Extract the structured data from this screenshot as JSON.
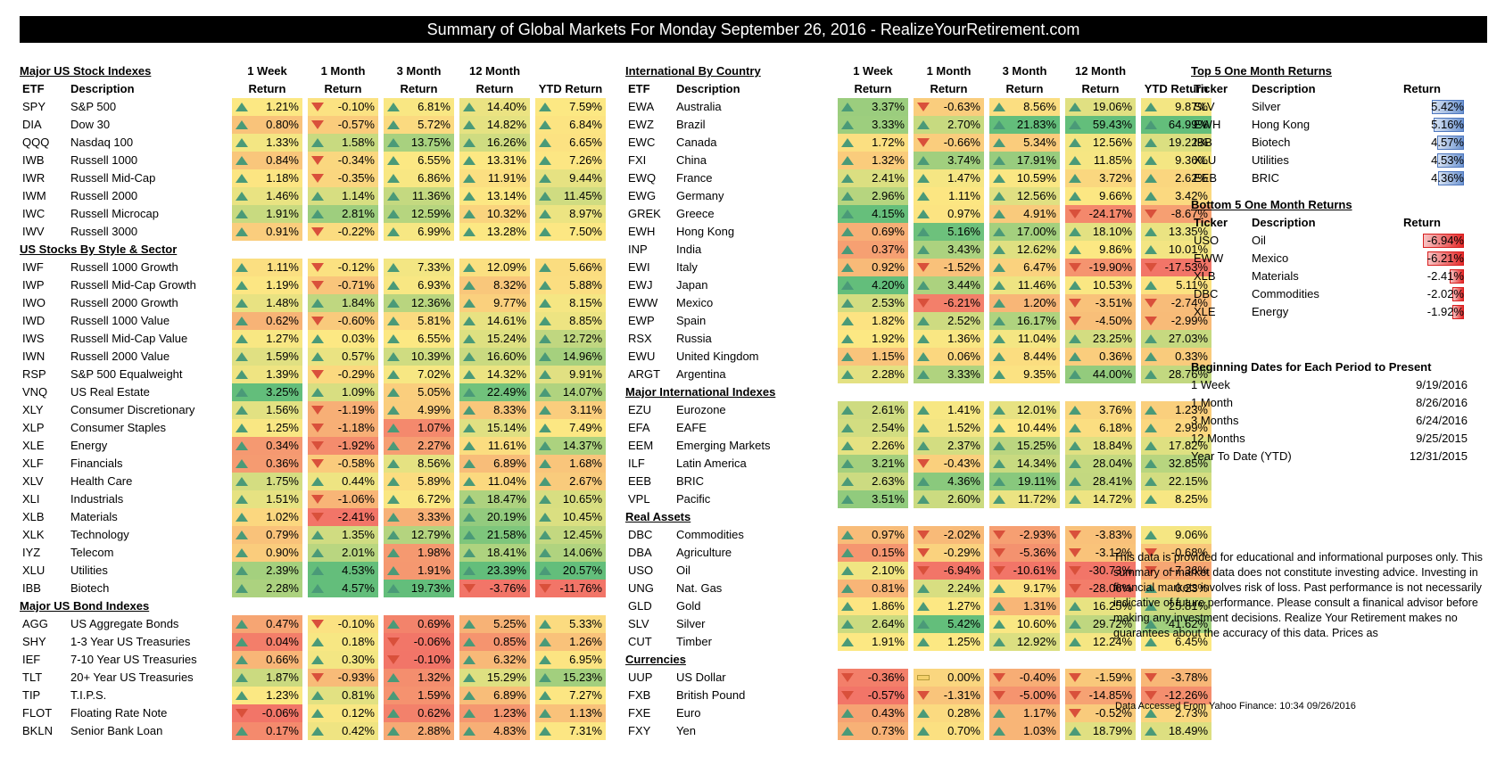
{
  "title": "Summary of Global Markets For Monday September 26, 2016 - RealizeYourRetirement.com",
  "left": {
    "header": {
      "etf": "ETF",
      "desc": "Description",
      "w1a": "1 Week",
      "w1b": "Return",
      "m1a": "1 Month",
      "m1b": "Return",
      "m3a": "3 Month",
      "m3b": "Return",
      "m12a": "12 Month",
      "m12b": "Return",
      "ytd": "YTD Return"
    },
    "sections": [
      {
        "title": "Major US Stock Indexes",
        "rows": [
          [
            "SPY",
            "S&P 500",
            "1.21%",
            "-0.10%",
            "6.81%",
            "14.40%",
            "7.59%"
          ],
          [
            "DIA",
            "Dow 30",
            "0.80%",
            "-0.57%",
            "5.72%",
            "14.82%",
            "6.84%"
          ],
          [
            "QQQ",
            "Nasdaq 100",
            "1.33%",
            "1.58%",
            "13.75%",
            "16.26%",
            "6.65%"
          ],
          [
            "IWB",
            "Russell 1000",
            "0.84%",
            "-0.34%",
            "6.55%",
            "13.31%",
            "7.26%"
          ],
          [
            "IWR",
            "Russell Mid-Cap",
            "1.18%",
            "-0.35%",
            "6.86%",
            "11.91%",
            "9.44%"
          ],
          [
            "IWM",
            "Russell 2000",
            "1.46%",
            "1.14%",
            "11.36%",
            "13.14%",
            "11.45%"
          ],
          [
            "IWC",
            "Russell Microcap",
            "1.91%",
            "2.81%",
            "12.59%",
            "10.32%",
            "8.97%"
          ],
          [
            "IWV",
            "Russell 3000",
            "0.91%",
            "-0.22%",
            "6.99%",
            "13.28%",
            "7.50%"
          ]
        ]
      },
      {
        "title": "US Stocks By Style & Sector",
        "rows": [
          [
            "IWF",
            "Russell 1000 Growth",
            "1.11%",
            "-0.12%",
            "7.33%",
            "12.09%",
            "5.66%"
          ],
          [
            "IWP",
            "Russell Mid-Cap Growth",
            "1.19%",
            "-0.71%",
            "6.93%",
            "8.32%",
            "5.88%"
          ],
          [
            "IWO",
            "Russell 2000 Growth",
            "1.48%",
            "1.84%",
            "12.36%",
            "9.77%",
            "8.15%"
          ],
          [
            "IWD",
            "Russell 1000 Value",
            "0.62%",
            "-0.60%",
            "5.81%",
            "14.61%",
            "8.85%"
          ],
          [
            "IWS",
            "Russell Mid-Cap Value",
            "1.27%",
            "0.03%",
            "6.55%",
            "15.24%",
            "12.72%"
          ],
          [
            "IWN",
            "Russell 2000 Value",
            "1.59%",
            "0.57%",
            "10.39%",
            "16.60%",
            "14.96%"
          ],
          [
            "RSP",
            "S&P 500 Equalweight",
            "1.39%",
            "-0.29%",
            "7.02%",
            "14.32%",
            "9.91%"
          ],
          [
            "VNQ",
            "US Real Estate",
            "3.25%",
            "1.09%",
            "5.05%",
            "22.49%",
            "14.07%"
          ],
          [
            "XLY",
            "Consumer Discretionary",
            "1.56%",
            "-1.19%",
            "4.99%",
            "8.33%",
            "3.11%"
          ],
          [
            "XLP",
            "Consumer Staples",
            "1.25%",
            "-1.18%",
            "1.07%",
            "15.14%",
            "7.49%"
          ],
          [
            "XLE",
            "Energy",
            "0.34%",
            "-1.92%",
            "2.27%",
            "11.61%",
            "14.37%"
          ],
          [
            "XLF",
            "Financials",
            "0.36%",
            "-0.58%",
            "8.56%",
            "6.89%",
            "1.68%"
          ],
          [
            "XLV",
            "Health Care",
            "1.75%",
            "0.44%",
            "5.89%",
            "11.04%",
            "2.67%"
          ],
          [
            "XLI",
            "Industrials",
            "1.51%",
            "-1.06%",
            "6.72%",
            "18.47%",
            "10.65%"
          ],
          [
            "XLB",
            "Materials",
            "1.02%",
            "-2.41%",
            "3.33%",
            "20.19%",
            "10.45%"
          ],
          [
            "XLK",
            "Technology",
            "0.79%",
            "1.35%",
            "12.79%",
            "21.58%",
            "12.45%"
          ],
          [
            "IYZ",
            "Telecom",
            "0.90%",
            "2.01%",
            "1.98%",
            "18.41%",
            "14.06%"
          ],
          [
            "XLU",
            "Utilities",
            "2.39%",
            "4.53%",
            "1.91%",
            "23.39%",
            "20.57%"
          ],
          [
            "IBB",
            "Biotech",
            "2.28%",
            "4.57%",
            "19.73%",
            "-3.76%",
            "-11.76%"
          ]
        ]
      },
      {
        "title": "Major US Bond Indexes",
        "rows": [
          [
            "AGG",
            "US Aggregate Bonds",
            "0.47%",
            "-0.10%",
            "0.69%",
            "5.25%",
            "5.33%"
          ],
          [
            "SHY",
            "1-3 Year US Treasuries",
            "0.04%",
            "0.18%",
            "-0.06%",
            "0.85%",
            "1.26%"
          ],
          [
            "IEF",
            "7-10 Year US Treasuries",
            "0.66%",
            "0.30%",
            "-0.10%",
            "6.32%",
            "6.95%"
          ],
          [
            "TLT",
            "20+ Year US Treasuries",
            "1.87%",
            "-0.93%",
            "1.32%",
            "15.29%",
            "15.23%"
          ],
          [
            "TIP",
            "T.I.P.S.",
            "1.23%",
            "0.81%",
            "1.59%",
            "6.89%",
            "7.27%"
          ],
          [
            "FLOT",
            "Floating Rate Note",
            "-0.06%",
            "0.12%",
            "0.62%",
            "1.23%",
            "1.13%"
          ],
          [
            "BKLN",
            "Senior Bank Loan",
            "0.17%",
            "0.42%",
            "2.88%",
            "4.83%",
            "7.31%"
          ]
        ]
      }
    ]
  },
  "mid": {
    "sections": [
      {
        "title": "International By Country",
        "rows": [
          [
            "EWA",
            "Australia",
            "3.37%",
            "-0.63%",
            "8.56%",
            "19.06%",
            "9.87%"
          ],
          [
            "EWZ",
            "Brazil",
            "3.33%",
            "2.70%",
            "21.83%",
            "59.43%",
            "64.99%"
          ],
          [
            "EWC",
            "Canada",
            "1.72%",
            "-0.66%",
            "5.34%",
            "12.56%",
            "19.22%"
          ],
          [
            "FXI",
            "China",
            "1.32%",
            "3.74%",
            "17.91%",
            "11.85%",
            "9.36%"
          ],
          [
            "EWQ",
            "France",
            "2.41%",
            "1.47%",
            "10.59%",
            "3.72%",
            "2.62%"
          ],
          [
            "EWG",
            "Germany",
            "2.96%",
            "1.11%",
            "12.56%",
            "9.66%",
            "3.42%"
          ],
          [
            "GREK",
            "Greece",
            "4.15%",
            "0.97%",
            "4.91%",
            "-24.17%",
            "-8.67%"
          ],
          [
            "EWH",
            "Hong Kong",
            "0.69%",
            "5.16%",
            "17.00%",
            "18.10%",
            "13.35%"
          ],
          [
            "INP",
            "India",
            "0.37%",
            "3.43%",
            "12.62%",
            "9.86%",
            "10.01%"
          ],
          [
            "EWI",
            "Italy",
            "0.92%",
            "-1.52%",
            "6.47%",
            "-19.90%",
            "-17.53%"
          ],
          [
            "EWJ",
            "Japan",
            "4.20%",
            "3.44%",
            "11.46%",
            "10.53%",
            "5.11%"
          ],
          [
            "EWW",
            "Mexico",
            "2.53%",
            "-6.21%",
            "1.20%",
            "-3.51%",
            "-2.74%"
          ],
          [
            "EWP",
            "Spain",
            "1.82%",
            "2.52%",
            "16.17%",
            "-4.50%",
            "-2.99%"
          ],
          [
            "RSX",
            "Russia",
            "1.92%",
            "1.36%",
            "11.04%",
            "23.25%",
            "27.03%"
          ],
          [
            "EWU",
            "United Kingdom",
            "1.15%",
            "0.06%",
            "8.44%",
            "0.36%",
            "0.33%"
          ],
          [
            "ARGT",
            "Argentina",
            "2.28%",
            "3.33%",
            "9.35%",
            "44.00%",
            "28.76%"
          ]
        ]
      },
      {
        "title": "Major International Indexes",
        "rows": [
          [
            "EZU",
            "Eurozone",
            "2.61%",
            "1.41%",
            "12.01%",
            "3.76%",
            "1.23%"
          ],
          [
            "EFA",
            "EAFE",
            "2.54%",
            "1.52%",
            "10.44%",
            "6.18%",
            "2.99%"
          ],
          [
            "EEM",
            "Emerging Markets",
            "2.26%",
            "2.37%",
            "15.25%",
            "18.84%",
            "17.82%"
          ],
          [
            "ILF",
            "Latin America",
            "3.21%",
            "-0.43%",
            "14.34%",
            "28.04%",
            "32.85%"
          ],
          [
            "EEB",
            "BRIC",
            "2.63%",
            "4.36%",
            "19.11%",
            "28.41%",
            "22.15%"
          ],
          [
            "VPL",
            "Pacific",
            "3.51%",
            "2.60%",
            "11.72%",
            "14.72%",
            "8.25%"
          ]
        ]
      },
      {
        "title": "Real Assets",
        "rows": [
          [
            "DBC",
            "Commodities",
            "0.97%",
            "-2.02%",
            "-2.93%",
            "-3.83%",
            "9.06%"
          ],
          [
            "DBA",
            "Agriculture",
            "0.15%",
            "-0.29%",
            "-5.36%",
            "-3.12%",
            "-0.68%"
          ],
          [
            "USO",
            "Oil",
            "2.10%",
            "-6.94%",
            "-10.61%",
            "-30.73%",
            "-7.36%"
          ],
          [
            "UNG",
            "Nat. Gas",
            "0.81%",
            "2.24%",
            "9.17%",
            "-28.06%",
            "0.23%"
          ],
          [
            "GLD",
            "Gold",
            "1.86%",
            "1.27%",
            "1.31%",
            "16.25%",
            "25.81%"
          ],
          [
            "SLV",
            "Silver",
            "2.64%",
            "5.42%",
            "10.60%",
            "29.72%",
            "41.62%"
          ],
          [
            "CUT",
            "Timber",
            "1.91%",
            "1.25%",
            "12.92%",
            "12.24%",
            "6.45%"
          ]
        ]
      },
      {
        "title": "Currencies",
        "rows": [
          [
            "UUP",
            "US Dollar",
            "-0.36%",
            "0.00%",
            "-0.40%",
            "-1.59%",
            "-3.78%"
          ],
          [
            "FXB",
            "British Pound",
            "-0.57%",
            "-1.31%",
            "-5.00%",
            "-14.85%",
            "-12.26%"
          ],
          [
            "FXE",
            "Euro",
            "0.43%",
            "0.28%",
            "1.17%",
            "-0.52%",
            "2.73%"
          ],
          [
            "FXY",
            "Yen",
            "0.73%",
            "0.70%",
            "1.03%",
            "18.79%",
            "18.49%"
          ]
        ]
      }
    ]
  },
  "right": {
    "top": {
      "title": "Top 5 One Month Returns",
      "hdr": [
        "Ticker",
        "Description",
        "Return"
      ],
      "rows": [
        [
          "SLV",
          "Silver",
          "5.42%"
        ],
        [
          "EWH",
          "Hong Kong",
          "5.16%"
        ],
        [
          "IBB",
          "Biotech",
          "4.57%"
        ],
        [
          "XLU",
          "Utilities",
          "4.53%"
        ],
        [
          "EEB",
          "BRIC",
          "4.36%"
        ]
      ]
    },
    "bottom": {
      "title": "Bottom 5 One Month Returns",
      "hdr": [
        "Ticker",
        "Description",
        "Return"
      ],
      "rows": [
        [
          "USO",
          "Oil",
          "-6.94%"
        ],
        [
          "EWW",
          "Mexico",
          "-6.21%"
        ],
        [
          "XLB",
          "Materials",
          "-2.41%"
        ],
        [
          "DBC",
          "Commodities",
          "-2.02%"
        ],
        [
          "XLE",
          "Energy",
          "-1.92%"
        ]
      ]
    },
    "dates": {
      "title": "Beginning Dates for Each Period to Present",
      "rows": [
        [
          "1 Week",
          "9/19/2016"
        ],
        [
          "1 Month",
          "8/26/2016"
        ],
        [
          "3 Months",
          "6/24/2016"
        ],
        [
          "12 Months",
          "9/25/2015"
        ],
        [
          "Year To Date (YTD)",
          "12/31/2015"
        ]
      ]
    },
    "disclaimer": "This data is provided for educational and informational purposes only. This summary of market data does not constitute investing advice. Investing in financial markets involves risk of loss.  Past performance is not necessarily  indicative of future performance. Please consult a finanical advisor before making any investment decisions. Realize Your Retirement makes no guarantees about the accuracy of this data. Prices as",
    "accessed": "Data Accessed From Yahoo Finance: 10:34 09/26/2016"
  }
}
